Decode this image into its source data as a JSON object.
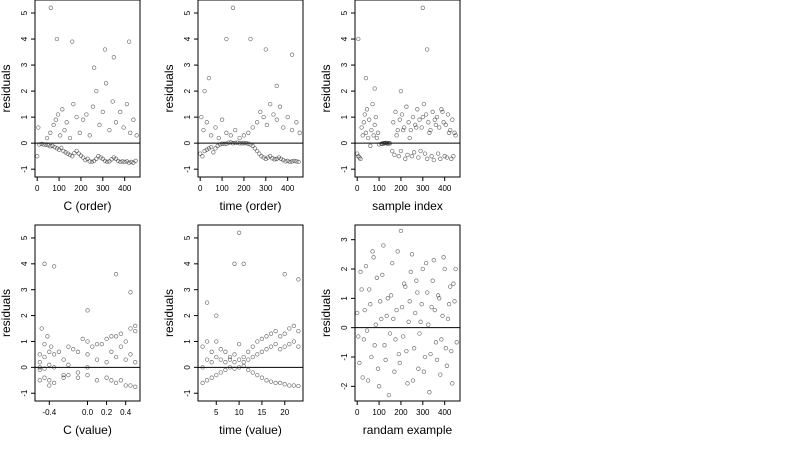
{
  "chart_data": [
    {
      "type": "scatter",
      "xlabel": "C (order)",
      "ylabel": "residuals",
      "xlim": [
        -10,
        470
      ],
      "ylim": [
        -1.3,
        5.5
      ],
      "xticks": [
        0,
        100,
        200,
        300,
        400
      ],
      "xtick_labels": [
        "0",
        "100",
        "200",
        "300",
        "400"
      ],
      "yticks": [
        -1,
        0,
        1,
        2,
        3,
        4,
        5
      ],
      "ytick_labels": [
        "-1",
        "0",
        "1",
        "2",
        "3",
        "4",
        "5"
      ],
      "reference_line": 0,
      "grid": false,
      "x": [
        0,
        10,
        20,
        30,
        40,
        50,
        60,
        70,
        80,
        90,
        100,
        110,
        120,
        130,
        140,
        150,
        160,
        170,
        180,
        190,
        200,
        210,
        220,
        230,
        240,
        250,
        260,
        270,
        280,
        290,
        300,
        310,
        320,
        330,
        340,
        350,
        360,
        370,
        380,
        390,
        400,
        410,
        420,
        430,
        440,
        450,
        5,
        45,
        60,
        75,
        85,
        95,
        105,
        115,
        125,
        135,
        150,
        165,
        180,
        195,
        210,
        225,
        240,
        255,
        270,
        285,
        300,
        315,
        330,
        345,
        360,
        380,
        395,
        410,
        425,
        440,
        455,
        62,
        90,
        160,
        260,
        310,
        350,
        420
      ],
      "y": [
        -0.5,
        -0.05,
        -0.03,
        -0.05,
        -0.06,
        -0.08,
        -0.12,
        -0.1,
        -0.15,
        -0.2,
        -0.25,
        -0.18,
        -0.3,
        -0.35,
        -0.4,
        -0.45,
        -0.5,
        -0.38,
        -0.3,
        -0.4,
        -0.48,
        -0.55,
        -0.65,
        -0.6,
        -0.7,
        -0.72,
        -0.68,
        -0.6,
        -0.5,
        -0.55,
        -0.6,
        -0.68,
        -0.72,
        -0.7,
        -0.62,
        -0.55,
        -0.6,
        -0.68,
        -0.72,
        -0.7,
        -0.72,
        -0.7,
        -0.75,
        -0.72,
        -0.75,
        -0.68,
        0.6,
        0.2,
        0.4,
        0.7,
        0.9,
        1.1,
        0.3,
        1.3,
        0.5,
        0.8,
        0.2,
        1.5,
        1.0,
        0.4,
        0.9,
        1.1,
        0.3,
        1.4,
        2.0,
        0.7,
        1.2,
        2.3,
        0.5,
        1.6,
        0.8,
        1.2,
        0.6,
        1.5,
        0.4,
        0.9,
        0.3,
        5.2,
        4.0,
        3.9,
        2.9,
        3.6,
        3.3,
        3.9
      ]
    },
    {
      "type": "scatter",
      "xlabel": "time (order)",
      "ylabel": "residuals",
      "xlim": [
        -10,
        470
      ],
      "ylim": [
        -1.3,
        5.5
      ],
      "xticks": [
        0,
        100,
        200,
        300,
        400
      ],
      "xtick_labels": [
        "0",
        "100",
        "200",
        "300",
        "400"
      ],
      "yticks": [
        -1,
        0,
        1,
        2,
        3,
        4,
        5
      ],
      "ytick_labels": [
        "-1",
        "0",
        "1",
        "2",
        "3",
        "4",
        "5"
      ],
      "reference_line": 0,
      "grid": false,
      "x": [
        0,
        10,
        20,
        30,
        40,
        50,
        60,
        70,
        80,
        90,
        100,
        110,
        120,
        130,
        140,
        150,
        160,
        170,
        180,
        190,
        200,
        210,
        220,
        230,
        240,
        250,
        260,
        270,
        280,
        290,
        300,
        310,
        320,
        330,
        340,
        350,
        360,
        370,
        380,
        390,
        400,
        410,
        420,
        430,
        440,
        450,
        5,
        15,
        30,
        50,
        70,
        85,
        100,
        120,
        140,
        160,
        180,
        200,
        220,
        240,
        260,
        275,
        290,
        305,
        320,
        335,
        350,
        365,
        380,
        400,
        420,
        440,
        455,
        20,
        40,
        120,
        150,
        230,
        300,
        350,
        420
      ],
      "y": [
        -0.4,
        -0.5,
        -0.3,
        -0.25,
        -0.2,
        -0.15,
        -0.35,
        -0.2,
        -0.1,
        -0.05,
        -0.02,
        -0.03,
        -0.02,
        0.02,
        0.03,
        0.0,
        0.01,
        0.02,
        0.0,
        -0.01,
        0.0,
        0.0,
        -0.02,
        -0.05,
        -0.1,
        -0.2,
        -0.3,
        -0.4,
        -0.5,
        -0.55,
        -0.6,
        -0.55,
        -0.5,
        -0.58,
        -0.62,
        -0.6,
        -0.55,
        -0.6,
        -0.65,
        -0.7,
        -0.68,
        -0.72,
        -0.7,
        -0.68,
        -0.7,
        -0.72,
        1.0,
        0.5,
        0.8,
        0.3,
        0.6,
        0.2,
        0.9,
        0.4,
        0.3,
        0.5,
        0.2,
        0.3,
        0.4,
        0.6,
        0.8,
        1.2,
        1.0,
        0.7,
        1.5,
        1.1,
        0.9,
        1.4,
        0.6,
        1.0,
        0.5,
        0.8,
        0.4,
        2.0,
        2.5,
        4.0,
        5.2,
        4.0,
        3.6,
        2.2,
        3.4
      ]
    },
    {
      "type": "scatter",
      "xlabel": "sample index",
      "ylabel": "residuals",
      "xlim": [
        -10,
        470
      ],
      "ylim": [
        -1.3,
        5.5
      ],
      "xticks": [
        0,
        100,
        200,
        300,
        400
      ],
      "xtick_labels": [
        "0",
        "100",
        "200",
        "300",
        "400"
      ],
      "yticks": [
        -1,
        0,
        1,
        2,
        3,
        4,
        5
      ],
      "ytick_labels": [
        "-1",
        "0",
        "1",
        "2",
        "3",
        "4",
        "5"
      ],
      "reference_line": 0,
      "grid": false,
      "x": [
        0,
        5,
        10,
        15,
        20,
        25,
        30,
        35,
        40,
        45,
        50,
        55,
        60,
        65,
        70,
        75,
        80,
        85,
        90,
        95,
        100,
        110,
        115,
        120,
        125,
        130,
        135,
        140,
        145,
        150,
        160,
        170,
        180,
        190,
        200,
        210,
        220,
        230,
        240,
        250,
        260,
        270,
        280,
        290,
        300,
        310,
        320,
        330,
        340,
        350,
        360,
        370,
        380,
        390,
        400,
        410,
        420,
        430,
        440,
        450,
        165,
        175,
        185,
        195,
        205,
        215,
        225,
        235,
        245,
        255,
        265,
        275,
        285,
        295,
        305,
        315,
        325,
        335,
        345,
        355,
        365,
        375,
        385,
        395,
        405,
        415,
        425,
        435,
        445,
        5,
        40,
        80,
        200,
        300,
        320
      ],
      "y": [
        -0.4,
        -0.5,
        -0.55,
        -0.6,
        0.6,
        0.3,
        0.8,
        1.1,
        0.4,
        1.3,
        0.2,
        0.9,
        -0.1,
        0.5,
        1.5,
        0.3,
        0.7,
        1.0,
        0.2,
        0.4,
        -0.05,
        -0.03,
        -0.02,
        0.0,
        -0.01,
        0.01,
        0.0,
        -0.02,
        0.0,
        -0.01,
        -0.3,
        -0.45,
        0.3,
        -0.5,
        -0.3,
        0.5,
        -0.6,
        -0.45,
        0.2,
        -0.5,
        -0.35,
        0.6,
        -0.55,
        -0.3,
        1.0,
        -0.4,
        -0.6,
        0.4,
        -0.5,
        -0.65,
        0.7,
        -0.4,
        -0.6,
        1.2,
        -0.5,
        -0.55,
        0.4,
        -0.6,
        -0.5,
        0.3,
        0.8,
        1.2,
        0.5,
        0.9,
        1.1,
        0.6,
        1.4,
        0.8,
        0.5,
        1.0,
        0.7,
        1.3,
        0.9,
        0.6,
        1.5,
        1.1,
        0.8,
        0.5,
        1.2,
        0.9,
        1.0,
        0.6,
        1.3,
        0.8,
        0.7,
        1.1,
        0.5,
        0.9,
        0.4,
        4.0,
        2.5,
        2.1,
        2.0,
        5.2,
        3.6
      ]
    },
    {
      "type": "scatter",
      "xlabel": "C (value)",
      "ylabel": "residuals",
      "xlim": [
        -0.55,
        0.55
      ],
      "ylim": [
        -1.3,
        5.5
      ],
      "xticks": [
        -0.4,
        0.0,
        0.2,
        0.4
      ],
      "xtick_labels": [
        "-0.4",
        "0.0",
        "0.2",
        "0.4"
      ],
      "yticks": [
        -1,
        0,
        1,
        2,
        3,
        4,
        5
      ],
      "ytick_labels": [
        "-1",
        "0",
        "1",
        "2",
        "3",
        "4",
        "5"
      ],
      "reference_line": 0,
      "grid": false,
      "x": [
        -0.5,
        -0.5,
        -0.5,
        -0.5,
        -0.5,
        -0.45,
        -0.45,
        -0.45,
        -0.45,
        -0.4,
        -0.4,
        -0.4,
        -0.4,
        -0.35,
        -0.35,
        -0.35,
        -0.25,
        -0.25,
        -0.25,
        -0.2,
        -0.2,
        -0.2,
        -0.1,
        -0.1,
        -0.1,
        0.0,
        0.0,
        0.0,
        0.0,
        0.1,
        0.1,
        0.1,
        0.2,
        0.2,
        0.2,
        0.25,
        0.25,
        0.3,
        0.3,
        0.3,
        0.35,
        0.35,
        0.4,
        0.4,
        0.4,
        0.45,
        0.45,
        0.5,
        0.5,
        0.5,
        -0.48,
        -0.42,
        -0.38,
        -0.3,
        -0.15,
        -0.05,
        0.05,
        0.15,
        0.25,
        0.35,
        0.45,
        0.5,
        -0.45,
        -0.35,
        0.0,
        0.3,
        0.45
      ],
      "y": [
        -0.1,
        0.0,
        0.2,
        0.5,
        -0.5,
        -0.05,
        0.4,
        0.9,
        -0.4,
        0.1,
        0.6,
        -0.5,
        -0.7,
        0.0,
        0.5,
        -0.6,
        0.3,
        -0.3,
        -0.4,
        0.1,
        0.8,
        -0.3,
        -0.2,
        0.6,
        -0.4,
        0.0,
        0.5,
        1.0,
        -0.3,
        0.3,
        0.9,
        -0.5,
        0.2,
        1.1,
        -0.4,
        0.6,
        -0.5,
        0.4,
        1.2,
        -0.6,
        0.8,
        -0.5,
        0.3,
        1.0,
        -0.7,
        0.5,
        -0.7,
        0.2,
        1.4,
        -0.75,
        1.5,
        1.2,
        0.8,
        0.6,
        0.7,
        1.1,
        0.8,
        0.9,
        1.2,
        1.3,
        1.5,
        1.6,
        4.0,
        3.9,
        2.2,
        3.6,
        2.9
      ]
    },
    {
      "type": "scatter",
      "xlabel": "time (value)",
      "ylabel": "residuals",
      "xlim": [
        1,
        24
      ],
      "ylim": [
        -1.3,
        5.5
      ],
      "xticks": [
        5,
        10,
        15,
        20
      ],
      "xtick_labels": [
        "5",
        "10",
        "15",
        "20"
      ],
      "yticks": [
        -1,
        0,
        1,
        2,
        3,
        4,
        5
      ],
      "ytick_labels": [
        "-1",
        "0",
        "1",
        "2",
        "3",
        "4",
        "5"
      ],
      "reference_line": 0,
      "grid": false,
      "x": [
        2,
        2,
        2,
        3,
        3,
        3,
        4,
        4,
        4,
        5,
        5,
        5,
        6,
        6,
        6,
        7,
        7,
        7,
        8,
        8,
        8,
        9,
        9,
        9,
        10,
        10,
        10,
        11,
        11,
        11,
        12,
        12,
        12,
        13,
        13,
        13,
        14,
        14,
        14,
        15,
        15,
        15,
        16,
        16,
        16,
        17,
        17,
        17,
        18,
        18,
        18,
        19,
        19,
        19,
        20,
        20,
        20,
        21,
        21,
        21,
        22,
        22,
        22,
        23,
        23,
        23,
        3,
        5,
        9,
        10,
        11,
        20,
        23
      ],
      "y": [
        -0.6,
        0.0,
        0.8,
        -0.5,
        0.3,
        1.0,
        -0.4,
        0.2,
        0.6,
        -0.3,
        0.4,
        1.0,
        -0.2,
        0.3,
        0.7,
        -0.1,
        0.2,
        0.6,
        0.0,
        0.3,
        0.4,
        -0.05,
        0.2,
        0.5,
        0.0,
        0.3,
        0.9,
        0.05,
        0.2,
        0.4,
        -0.1,
        0.3,
        0.6,
        -0.2,
        0.4,
        0.8,
        -0.3,
        0.5,
        1.0,
        -0.4,
        0.6,
        1.1,
        -0.5,
        0.7,
        1.2,
        -0.55,
        0.8,
        1.3,
        -0.6,
        0.9,
        1.4,
        -0.6,
        0.7,
        1.2,
        -0.65,
        0.8,
        1.3,
        -0.7,
        0.9,
        1.5,
        -0.7,
        1.0,
        1.6,
        -0.72,
        0.8,
        1.4,
        2.5,
        2.0,
        4.0,
        5.2,
        4.0,
        3.6,
        3.4
      ]
    },
    {
      "type": "scatter",
      "xlabel": "randam example",
      "ylabel": "residuals",
      "xlim": [
        -10,
        470
      ],
      "ylim": [
        -2.5,
        3.5
      ],
      "xticks": [
        0,
        100,
        200,
        300,
        400
      ],
      "xtick_labels": [
        "0",
        "100",
        "200",
        "300",
        "400"
      ],
      "yticks": [
        -2,
        -1,
        0,
        1,
        2,
        3
      ],
      "ytick_labels": [
        "-2",
        "-1",
        "0",
        "1",
        "2",
        "3"
      ],
      "reference_line": 0,
      "grid": false,
      "x": [
        0,
        10,
        20,
        30,
        40,
        50,
        60,
        70,
        80,
        90,
        100,
        110,
        120,
        130,
        140,
        150,
        160,
        170,
        180,
        190,
        200,
        210,
        220,
        230,
        240,
        250,
        260,
        270,
        280,
        290,
        300,
        310,
        320,
        330,
        340,
        350,
        360,
        370,
        380,
        390,
        400,
        410,
        420,
        430,
        440,
        450,
        5,
        15,
        25,
        35,
        45,
        55,
        65,
        75,
        85,
        95,
        105,
        115,
        125,
        135,
        145,
        155,
        165,
        175,
        185,
        195,
        205,
        215,
        225,
        235,
        245,
        255,
        265,
        275,
        285,
        295,
        305,
        315,
        325,
        335,
        345,
        355,
        365,
        375,
        385,
        395,
        405,
        415,
        425,
        435,
        445,
        455
      ],
      "y": [
        0.5,
        -1.2,
        1.3,
        -0.4,
        2.1,
        -1.8,
        0.8,
        2.6,
        -0.6,
        1.7,
        -2.0,
        0.3,
        2.8,
        -1.1,
        1.0,
        -0.2,
        2.2,
        -1.5,
        0.6,
        -0.9,
        3.3,
        -0.3,
        1.4,
        -1.9,
        0.9,
        2.5,
        -0.7,
        1.6,
        -1.4,
        0.2,
        2.0,
        -1.0,
        1.2,
        -2.2,
        0.7,
        2.3,
        -0.5,
        1.1,
        -1.6,
        0.4,
        2.0,
        -1.3,
        0.8,
        -0.8,
        1.5,
        2.0,
        -0.3,
        1.9,
        -1.7,
        0.6,
        -0.1,
        1.3,
        -1.0,
        2.4,
        0.1,
        -1.4,
        0.9,
        1.8,
        -0.6,
        0.4,
        -2.3,
        1.1,
        0.3,
        -0.4,
        2.6,
        -1.2,
        0.7,
        1.5,
        -0.8,
        0.2,
        1.9,
        -1.8,
        0.5,
        1.2,
        -0.2,
        0.8,
        -1.5,
        2.2,
        0.1,
        -0.9,
        1.6,
        0.6,
        -1.1,
        1.0,
        -0.4,
        2.4,
        -0.7,
        0.3,
        1.4,
        -1.9,
        0.9,
        -0.5
      ]
    }
  ]
}
